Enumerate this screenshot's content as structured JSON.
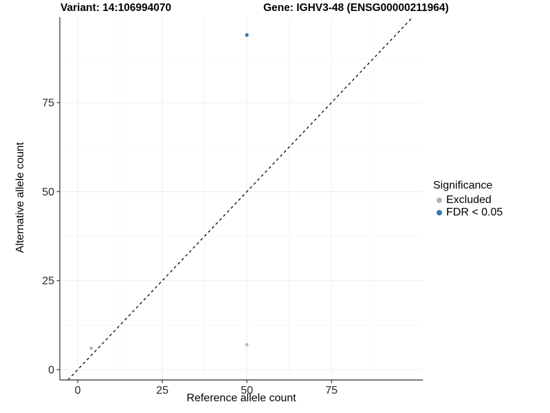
{
  "chart_data": {
    "type": "scatter",
    "title_left": "Variant: 14:106994070",
    "title_right": "Gene: IGHV3-48 (ENSG00000211964)",
    "xlabel": "Reference allele count",
    "ylabel": "Alternative allele count",
    "xlim": [
      -5.3,
      102
    ],
    "ylim": [
      -2.9,
      99
    ],
    "x_ticks": [
      0,
      25,
      50,
      75
    ],
    "y_ticks": [
      0,
      25,
      50,
      75
    ],
    "grid": "major+minor",
    "legend_position": "right",
    "identity_line": {
      "style": "dashed",
      "equation": "y = x",
      "color": "#000000"
    },
    "legend": {
      "title": "Significance",
      "entries": [
        {
          "label": "Excluded",
          "color": "#b3b3b3"
        },
        {
          "label": "FDR < 0.05",
          "color": "#3873b3"
        }
      ]
    },
    "series": [
      {
        "name": "Excluded",
        "color": "#b3b3b3",
        "point_radius": 2.3,
        "points": [
          [
            4,
            6
          ],
          [
            50,
            7
          ]
        ]
      },
      {
        "name": "FDR < 0.05",
        "color": "#3873b3",
        "point_radius": 2.6,
        "points": [
          [
            50,
            94
          ]
        ]
      }
    ],
    "colors": {
      "axis_line": "#4d4d4d",
      "tick_mark": "#333333",
      "tick_label": "#262626",
      "grid_major": "#ececec",
      "grid_minor": "#f5f5f5",
      "background": "#ffffff"
    }
  }
}
